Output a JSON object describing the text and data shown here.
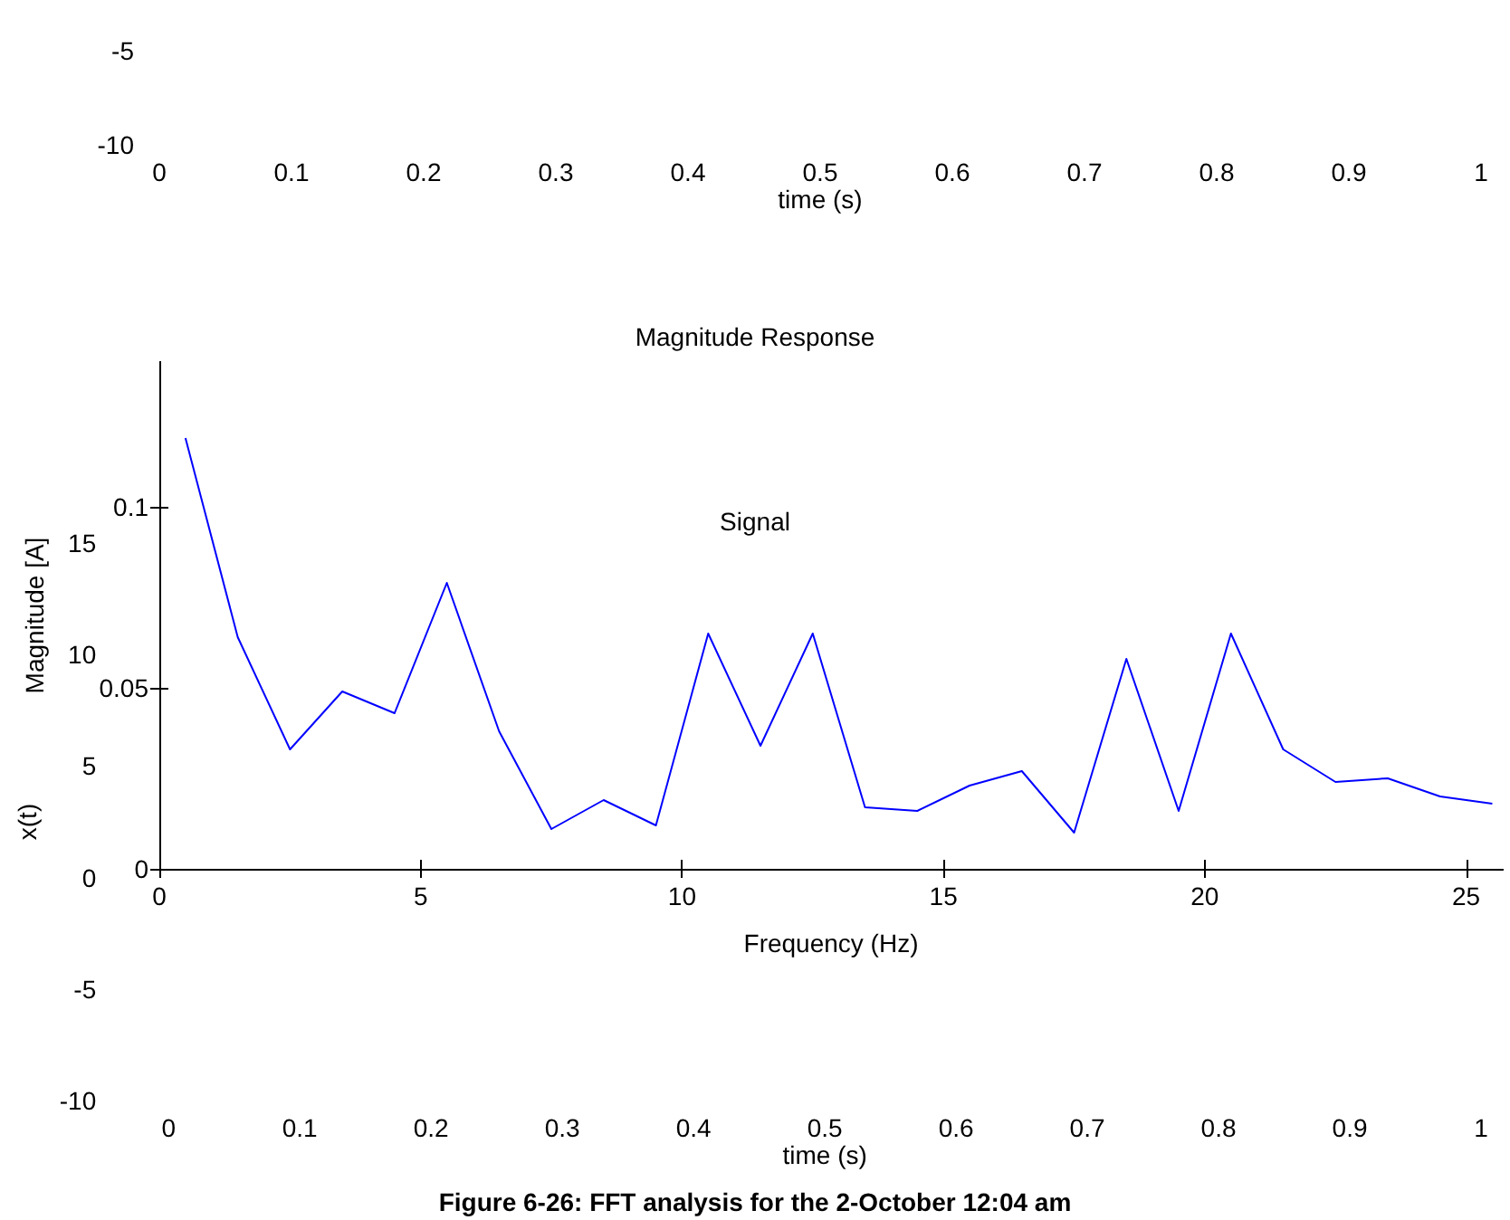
{
  "chart_data": [
    {
      "type": "line",
      "xlabel": "time (s)",
      "xlim": [
        0,
        1
      ],
      "xticks": [
        0,
        0.1,
        0.2,
        0.3,
        0.4,
        0.5,
        0.6,
        0.7,
        0.8,
        0.9,
        1
      ],
      "ylim": [
        -10,
        -5
      ],
      "yticks": [
        -10,
        -5
      ]
    },
    {
      "type": "line",
      "title": "Magnitude Response",
      "xlabel": "Frequency (Hz)",
      "ylabel": "Magnitude [A]",
      "xlim": [
        0,
        25.7
      ],
      "xticks": [
        0,
        5,
        10,
        15,
        20,
        25
      ],
      "ylim": [
        0,
        0.14
      ],
      "yticks": [
        0,
        0.05,
        0.1
      ],
      "grid": false,
      "marker": "none",
      "line_style": "solid",
      "series": [
        {
          "color": "#0000ff",
          "x": [
            0.5,
            1.5,
            2.5,
            3.5,
            4.5,
            5.5,
            6.5,
            7.5,
            8.5,
            9.5,
            10.5,
            11.5,
            12.5,
            13.5,
            14.5,
            15.5,
            16.5,
            17.5,
            18.5,
            19.5,
            20.5,
            21.5,
            22.5,
            23.5,
            24.5,
            25.5
          ],
          "values": [
            0.119,
            0.064,
            0.033,
            0.049,
            0.043,
            0.079,
            0.038,
            0.011,
            0.019,
            0.012,
            0.065,
            0.034,
            0.065,
            0.017,
            0.016,
            0.023,
            0.027,
            0.01,
            0.058,
            0.016,
            0.065,
            0.033,
            0.024,
            0.025,
            0.02,
            0.018
          ]
        }
      ]
    },
    {
      "type": "line",
      "title": "Signal",
      "xlabel": "time (s)",
      "ylabel": "x(t)",
      "xlim": [
        0,
        1
      ],
      "xticks": [
        0,
        0.1,
        0.2,
        0.3,
        0.4,
        0.5,
        0.6,
        0.7,
        0.8,
        0.9,
        1
      ],
      "ylim": [
        -10,
        15
      ],
      "yticks": [
        -10,
        -5,
        0,
        5,
        10,
        15
      ],
      "annotations": [
        "Figure 6-26: FFT analysis for the 2-October 12:04 am"
      ]
    }
  ]
}
